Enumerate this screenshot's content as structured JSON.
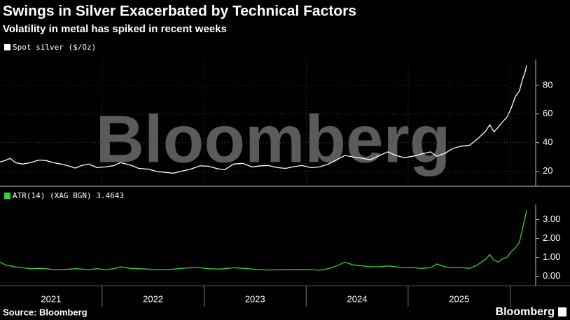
{
  "header": {
    "title": "Swings in Silver Exacerbated by Technical Factors",
    "subtitle": "Volatility in metal has spiked in recent weeks"
  },
  "watermark": "Bloomberg",
  "footer": {
    "source": "Source: Bloomberg",
    "logo": "Bloomberg"
  },
  "chart_data": [
    {
      "type": "line",
      "xlim": [
        2021,
        2026.25
      ],
      "ylim": [
        10,
        98
      ],
      "yticks": [
        20,
        40,
        60,
        80
      ],
      "grid": true,
      "x": [
        2021.0,
        2021.05,
        2021.1,
        2021.15,
        2021.22,
        2021.3,
        2021.38,
        2021.45,
        2021.52,
        2021.6,
        2021.68,
        2021.74,
        2021.8,
        2021.87,
        2021.95,
        2022.03,
        2022.12,
        2022.18,
        2022.27,
        2022.36,
        2022.45,
        2022.54,
        2022.62,
        2022.7,
        2022.78,
        2022.87,
        2022.96,
        2023.04,
        2023.13,
        2023.2,
        2023.29,
        2023.38,
        2023.47,
        2023.55,
        2023.63,
        2023.72,
        2023.8,
        2023.88,
        2023.96,
        2024.05,
        2024.13,
        2024.22,
        2024.3,
        2024.38,
        2024.46,
        2024.55,
        2024.63,
        2024.72,
        2024.8,
        2024.88,
        2024.96,
        2025.05,
        2025.13,
        2025.22,
        2025.28,
        2025.36,
        2025.44,
        2025.52,
        2025.6,
        2025.68,
        2025.76,
        2025.8,
        2025.84,
        2025.88,
        2025.92,
        2025.97,
        2026.01,
        2026.05,
        2026.09,
        2026.12,
        2026.15,
        2026.16
      ],
      "series": [
        {
          "name": "Spot silver ($/Oz)",
          "color": "#ffffff",
          "values": [
            26.5,
            27.5,
            29.0,
            26.0,
            25.0,
            26.0,
            27.8,
            27.5,
            26.0,
            25.0,
            23.5,
            22.2,
            24.0,
            25.0,
            22.5,
            23.0,
            24.0,
            26.0,
            24.5,
            22.0,
            21.5,
            19.8,
            19.2,
            18.6,
            20.0,
            21.5,
            23.8,
            23.5,
            21.8,
            21.0,
            25.0,
            25.5,
            23.0,
            23.8,
            24.0,
            22.5,
            22.0,
            23.2,
            24.0,
            22.5,
            23.0,
            25.0,
            28.0,
            31.0,
            30.0,
            29.0,
            28.0,
            31.0,
            33.5,
            31.0,
            29.5,
            30.5,
            32.0,
            33.5,
            30.5,
            32.5,
            36.0,
            37.5,
            38.0,
            42.5,
            48.0,
            52.5,
            47.5,
            50.5,
            54.0,
            58.0,
            64.0,
            72.0,
            76.0,
            84.0,
            90.0,
            94.0
          ]
        }
      ]
    },
    {
      "type": "line",
      "xlim": [
        2021,
        2026.25
      ],
      "ylim": [
        -0.5,
        3.8
      ],
      "yticks": [
        {
          "value": 0,
          "label": "0.00"
        },
        {
          "value": 1,
          "label": "1.00"
        },
        {
          "value": 2,
          "label": "2.00"
        },
        {
          "value": 3,
          "label": "3.00"
        }
      ],
      "xticks": [
        {
          "value": 2021.5,
          "label": "2021"
        },
        {
          "value": 2022.5,
          "label": "2022"
        },
        {
          "value": 2023.5,
          "label": "2023"
        },
        {
          "value": 2024.5,
          "label": "2024"
        },
        {
          "value": 2025.5,
          "label": "2025"
        }
      ],
      "x": [
        2021.0,
        2021.05,
        2021.1,
        2021.15,
        2021.22,
        2021.3,
        2021.38,
        2021.45,
        2021.52,
        2021.6,
        2021.68,
        2021.74,
        2021.8,
        2021.87,
        2021.95,
        2022.03,
        2022.12,
        2022.18,
        2022.27,
        2022.36,
        2022.45,
        2022.54,
        2022.62,
        2022.7,
        2022.78,
        2022.87,
        2022.96,
        2023.04,
        2023.13,
        2023.2,
        2023.29,
        2023.38,
        2023.47,
        2023.55,
        2023.63,
        2023.72,
        2023.8,
        2023.88,
        2023.96,
        2024.05,
        2024.13,
        2024.22,
        2024.3,
        2024.38,
        2024.46,
        2024.55,
        2024.63,
        2024.72,
        2024.8,
        2024.88,
        2024.96,
        2025.05,
        2025.13,
        2025.22,
        2025.28,
        2025.36,
        2025.44,
        2025.52,
        2025.6,
        2025.68,
        2025.76,
        2025.8,
        2025.84,
        2025.88,
        2025.92,
        2025.97,
        2026.01,
        2026.05,
        2026.09,
        2026.12,
        2026.15,
        2026.16
      ],
      "series": [
        {
          "name": "ATR(14) (XAG BGN) 3.4643",
          "color": "#33d633",
          "values": [
            0.75,
            0.6,
            0.55,
            0.5,
            0.45,
            0.4,
            0.42,
            0.4,
            0.35,
            0.35,
            0.38,
            0.4,
            0.38,
            0.35,
            0.4,
            0.35,
            0.4,
            0.5,
            0.42,
            0.4,
            0.38,
            0.35,
            0.35,
            0.38,
            0.42,
            0.45,
            0.45,
            0.4,
            0.38,
            0.4,
            0.45,
            0.42,
            0.38,
            0.35,
            0.33,
            0.35,
            0.35,
            0.34,
            0.36,
            0.35,
            0.32,
            0.4,
            0.55,
            0.75,
            0.6,
            0.55,
            0.5,
            0.5,
            0.55,
            0.5,
            0.45,
            0.45,
            0.42,
            0.45,
            0.65,
            0.5,
            0.45,
            0.45,
            0.42,
            0.6,
            0.9,
            1.15,
            0.85,
            0.75,
            0.9,
            1.0,
            1.3,
            1.5,
            1.8,
            2.5,
            3.2,
            3.46
          ]
        }
      ]
    }
  ]
}
